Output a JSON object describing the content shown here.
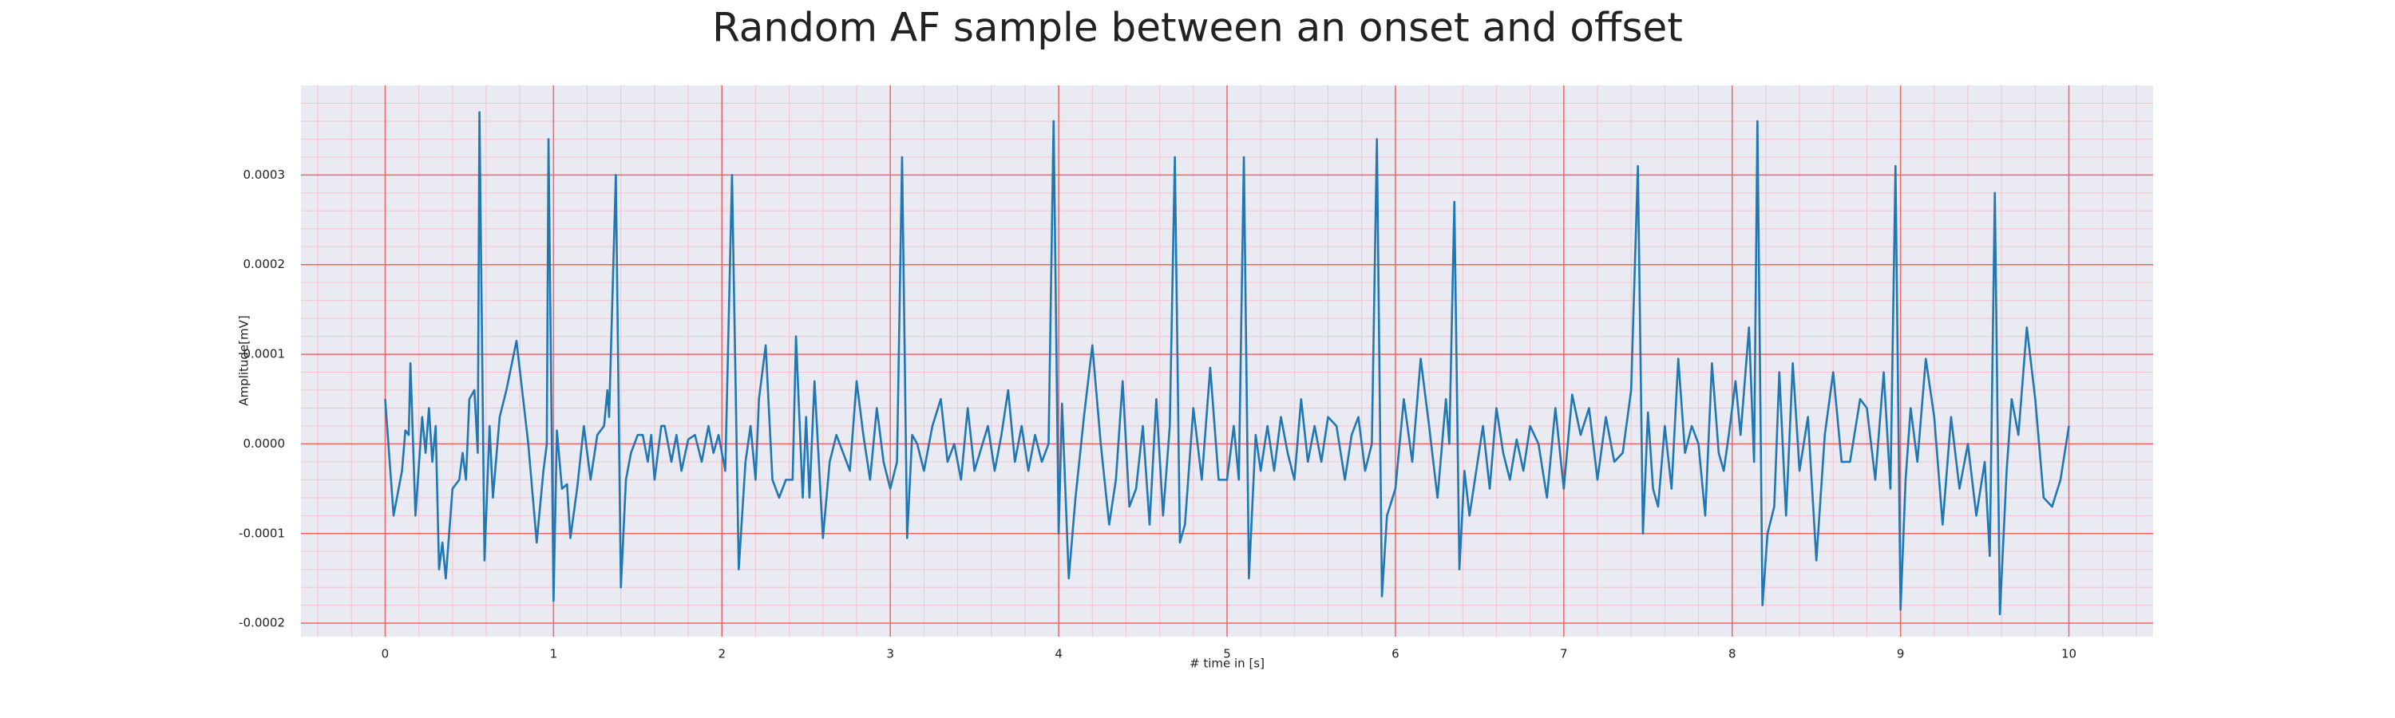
{
  "chart_data": {
    "type": "line",
    "title": "Random AF sample between an onset and offset",
    "xlabel": "# time in [s]",
    "ylabel": "Amplitude[mV]",
    "color": "#1f77b4",
    "grid": true,
    "xlim": [
      -0.5,
      10.5
    ],
    "ylim": [
      -0.000215,
      0.0004
    ],
    "xticks": [
      0,
      1,
      2,
      3,
      4,
      5,
      6,
      7,
      8,
      9,
      10
    ],
    "yticks": [
      -0.0002,
      -0.0001,
      {
        "value": 0,
        "label": "0.0000"
      },
      0.0001,
      0.0002,
      0.0003
    ],
    "xminorticks": [
      -0.4,
      -0.2,
      0.2,
      0.4,
      0.6,
      0.8,
      1.2,
      1.4,
      1.6,
      1.8,
      2.2,
      2.4,
      2.6,
      2.8,
      3.2,
      3.4,
      3.6,
      3.8,
      4.2,
      4.4,
      4.6,
      4.8,
      5.2,
      5.4,
      5.6,
      5.8,
      6.2,
      6.4,
      6.6,
      6.8,
      7.2,
      7.4,
      7.6,
      7.8,
      8.2,
      8.4,
      8.6,
      8.8,
      9.2,
      9.4,
      9.6,
      9.8,
      10.2,
      10.4
    ],
    "yminorticks": [
      -0.00018,
      -0.00016,
      -0.00014,
      -0.00012,
      -8e-05,
      -6e-05,
      -4e-05,
      -2e-05,
      2e-05,
      4e-05,
      6e-05,
      8e-05,
      0.00012,
      0.00014,
      0.00016,
      0.00018,
      0.00022,
      0.00024,
      0.00026,
      0.00028,
      0.00032,
      0.00034,
      0.00036,
      0.00038
    ],
    "x": [
      0,
      0.05,
      0.1,
      0.12,
      0.14,
      0.15,
      0.18,
      0.22,
      0.24,
      0.26,
      0.28,
      0.3,
      0.32,
      0.34,
      0.36,
      0.4,
      0.44,
      0.46,
      0.48,
      0.5,
      0.53,
      0.55,
      0.56,
      0.59,
      0.62,
      0.64,
      0.68,
      0.72,
      0.78,
      0.85,
      0.9,
      0.94,
      0.96,
      0.97,
      1.0,
      1.02,
      1.05,
      1.08,
      1.1,
      1.14,
      1.18,
      1.22,
      1.26,
      1.3,
      1.32,
      1.33,
      1.37,
      1.4,
      1.43,
      1.46,
      1.5,
      1.53,
      1.56,
      1.58,
      1.6,
      1.64,
      1.66,
      1.7,
      1.73,
      1.76,
      1.8,
      1.84,
      1.88,
      1.92,
      1.95,
      1.98,
      2.02,
      2.06,
      2.1,
      2.14,
      2.17,
      2.2,
      2.22,
      2.26,
      2.3,
      2.34,
      2.38,
      2.42,
      2.44,
      2.48,
      2.5,
      2.52,
      2.55,
      2.6,
      2.64,
      2.68,
      2.72,
      2.76,
      2.8,
      2.84,
      2.88,
      2.92,
      2.96,
      3.0,
      3.04,
      3.07,
      3.1,
      3.13,
      3.16,
      3.2,
      3.25,
      3.3,
      3.34,
      3.38,
      3.42,
      3.46,
      3.5,
      3.54,
      3.58,
      3.62,
      3.66,
      3.7,
      3.74,
      3.78,
      3.82,
      3.86,
      3.9,
      3.94,
      3.97,
      4.0,
      4.02,
      4.06,
      4.1,
      4.15,
      4.2,
      4.25,
      4.3,
      4.34,
      4.38,
      4.42,
      4.46,
      4.5,
      4.54,
      4.58,
      4.62,
      4.66,
      4.69,
      4.72,
      4.75,
      4.8,
      4.85,
      4.9,
      4.95,
      5.0,
      5.04,
      5.07,
      5.1,
      5.13,
      5.17,
      5.2,
      5.24,
      5.28,
      5.32,
      5.36,
      5.4,
      5.44,
      5.48,
      5.52,
      5.56,
      5.6,
      5.65,
      5.7,
      5.74,
      5.78,
      5.82,
      5.86,
      5.89,
      5.92,
      5.95,
      6.0,
      6.05,
      6.1,
      6.15,
      6.2,
      6.25,
      6.3,
      6.32,
      6.35,
      6.38,
      6.41,
      6.44,
      6.48,
      6.52,
      6.56,
      6.6,
      6.64,
      6.68,
      6.72,
      6.76,
      6.8,
      6.85,
      6.9,
      6.95,
      7.0,
      7.05,
      7.1,
      7.15,
      7.2,
      7.25,
      7.3,
      7.35,
      7.4,
      7.44,
      7.47,
      7.5,
      7.53,
      7.56,
      7.6,
      7.64,
      7.68,
      7.72,
      7.76,
      7.8,
      7.84,
      7.88,
      7.92,
      7.95,
      7.98,
      8.02,
      8.05,
      8.1,
      8.13,
      8.15,
      8.18,
      8.21,
      8.25,
      8.28,
      8.32,
      8.36,
      8.4,
      8.45,
      8.5,
      8.55,
      8.6,
      8.65,
      8.7,
      8.76,
      8.8,
      8.85,
      8.9,
      8.94,
      8.97,
      9.0,
      9.03,
      9.06,
      9.1,
      9.15,
      9.2,
      9.25,
      9.3,
      9.35,
      9.4,
      9.45,
      9.5,
      9.53,
      9.56,
      9.59,
      9.63,
      9.66,
      9.7,
      9.75,
      9.8,
      9.85,
      9.9,
      9.95,
      10.0
    ],
    "values": [
      5e-05,
      -8e-05,
      -3e-05,
      1.5e-05,
      1e-05,
      9e-05,
      -8e-05,
      3e-05,
      -1e-05,
      4e-05,
      -2e-05,
      2e-05,
      -0.00014,
      -0.00011,
      -0.00015,
      -5e-05,
      -4e-05,
      -1e-05,
      -4e-05,
      5e-05,
      6e-05,
      -1e-05,
      0.00037,
      -0.00013,
      2e-05,
      -6e-05,
      3e-05,
      6e-05,
      0.000115,
      0,
      -0.00011,
      -3e-05,
      0,
      0.00034,
      -0.000175,
      1.5e-05,
      -5e-05,
      -4.5e-05,
      -0.000105,
      -5e-05,
      2e-05,
      -4e-05,
      1e-05,
      2e-05,
      6e-05,
      3e-05,
      0.0003,
      -0.00016,
      -4e-05,
      -1e-05,
      1e-05,
      1e-05,
      -2e-05,
      1e-05,
      -4e-05,
      2e-05,
      2e-05,
      -2e-05,
      1e-05,
      -3e-05,
      5e-06,
      1e-05,
      -2e-05,
      2e-05,
      -1e-05,
      1e-05,
      -3e-05,
      0.0003,
      -0.00014,
      -2e-05,
      2e-05,
      -4e-05,
      5e-05,
      0.00011,
      -4e-05,
      -6e-05,
      -4e-05,
      -4e-05,
      0.00012,
      -6e-05,
      3e-05,
      -6e-05,
      7e-05,
      -0.000105,
      -2e-05,
      1e-05,
      -1e-05,
      -3e-05,
      7e-05,
      1e-05,
      -4e-05,
      4e-05,
      -2e-05,
      -5e-05,
      -2e-05,
      0.00032,
      -0.000105,
      1e-05,
      0,
      -3e-05,
      2e-05,
      5e-05,
      -2e-05,
      0,
      -4e-05,
      4e-05,
      -3e-05,
      -5e-06,
      2e-05,
      -3e-05,
      1e-05,
      6e-05,
      -2e-05,
      2e-05,
      -3e-05,
      1e-05,
      -2e-05,
      0,
      0.00036,
      -0.0001,
      4.5e-05,
      -0.00015,
      -6e-05,
      3e-05,
      0.00011,
      0,
      -9e-05,
      -4e-05,
      7e-05,
      -7e-05,
      -5e-05,
      2e-05,
      -9e-05,
      5e-05,
      -8e-05,
      2e-05,
      0.00032,
      -0.00011,
      -9e-05,
      4e-05,
      -4e-05,
      8.5e-05,
      -4e-05,
      -4e-05,
      2e-05,
      -4e-05,
      0.00032,
      -0.00015,
      1e-05,
      -3e-05,
      2e-05,
      -3e-05,
      3e-05,
      -1e-05,
      -4e-05,
      5e-05,
      -2e-05,
      2e-05,
      -2e-05,
      3e-05,
      2e-05,
      -4e-05,
      1e-05,
      3e-05,
      -3e-05,
      0,
      0.00034,
      -0.00017,
      -8e-05,
      -5e-05,
      5e-05,
      -2e-05,
      9.5e-05,
      2e-05,
      -6e-05,
      5e-05,
      0,
      0.00027,
      -0.00014,
      -3e-05,
      -8e-05,
      -3e-05,
      2e-05,
      -5e-05,
      4e-05,
      -1e-05,
      -4e-05,
      5e-06,
      -3e-05,
      2e-05,
      0,
      -6e-05,
      4e-05,
      -5e-05,
      5.5e-05,
      1e-05,
      4e-05,
      -4e-05,
      3e-05,
      -2e-05,
      -1e-05,
      6e-05,
      0.00031,
      -0.0001,
      3.5e-05,
      -5e-05,
      -7e-05,
      2e-05,
      -5e-05,
      9.5e-05,
      -1e-05,
      2e-05,
      0,
      -8e-05,
      9e-05,
      -1e-05,
      -3e-05,
      1e-05,
      7e-05,
      1e-05,
      0.00013,
      -2e-05,
      0.00036,
      -0.00018,
      -0.0001,
      -7e-05,
      8e-05,
      -8e-05,
      9e-05,
      -3e-05,
      3e-05,
      -0.00013,
      1e-05,
      8e-05,
      -2e-05,
      -2e-05,
      5e-05,
      4e-05,
      -4e-05,
      8e-05,
      -5e-05,
      0.00031,
      -0.000185,
      -4e-05,
      4e-05,
      -2e-05,
      9.5e-05,
      3e-05,
      -9e-05,
      3e-05,
      -5e-05,
      0,
      -8e-05,
      -2e-05,
      -0.000125,
      0.00028,
      -0.00019,
      -3e-05,
      5e-05,
      1e-05,
      0.00013,
      5e-05,
      -6e-05,
      -7e-05,
      -4e-05,
      2e-05
    ]
  }
}
